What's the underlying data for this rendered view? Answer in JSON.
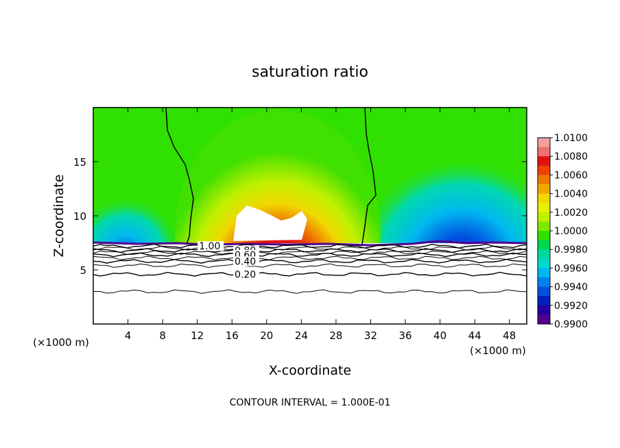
{
  "chart_data": {
    "type": "heatmap",
    "title": "saturation ratio",
    "xlabel": "X-coordinate",
    "ylabel": "Z-coordinate",
    "x_unit_label": "(×1000 m)",
    "x_unit_label_right": "(×1000 m)",
    "footer": "CONTOUR INTERVAL = 1.000E-01",
    "xlim": [
      0,
      50
    ],
    "ylim": [
      0,
      20
    ],
    "x_ticks": [
      4,
      8,
      12,
      16,
      20,
      24,
      28,
      32,
      36,
      40,
      44,
      48
    ],
    "y_ticks": [
      5,
      10,
      15
    ],
    "colorbar": {
      "levels": [
        "1.0100",
        "1.0080",
        "1.0060",
        "1.0040",
        "1.0020",
        "1.0000",
        "0.9980",
        "0.9960",
        "0.9940",
        "0.9920",
        "0.9900"
      ],
      "colors": [
        "#f0a0a0",
        "#f07070",
        "#e01010",
        "#f04000",
        "#f07800",
        "#f0a800",
        "#f0d800",
        "#e8f000",
        "#c0f000",
        "#80e800",
        "#30e000",
        "#00d850",
        "#00d8a0",
        "#00d8d0",
        "#00b8f0",
        "#0080f0",
        "#0050e0",
        "#0020c0",
        "#2000a0",
        "#500090"
      ]
    },
    "contour_labels": [
      "1.00",
      "0.80",
      "0.60",
      "0.40",
      "0.20"
    ],
    "contour_heights_km": {
      "1.00": 7.2,
      "0.80": 6.8,
      "0.60": 6.4,
      "0.40": 5.8,
      "0.20": 4.6
    },
    "extra_contours_km": [
      7.0,
      6.6,
      6.1,
      5.4,
      3.0
    ],
    "cloud_base_km": 7.3,
    "saturation_contour_x_km": [
      10.5,
      31.5
    ]
  }
}
